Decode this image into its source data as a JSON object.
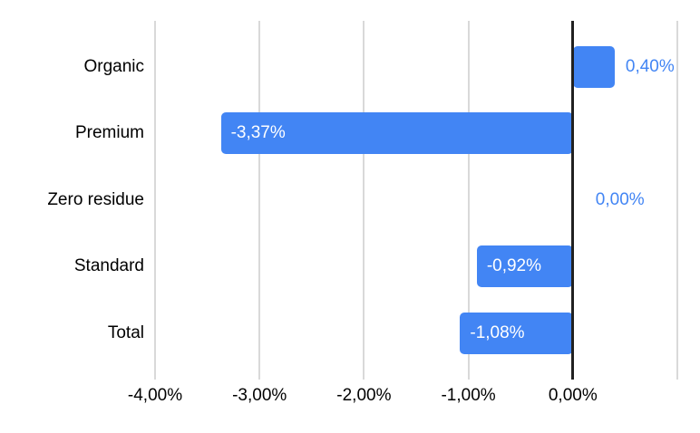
{
  "chart_data": {
    "type": "bar",
    "orientation": "horizontal",
    "title": "",
    "legend": "none",
    "grid": true,
    "categories": [
      "Organic",
      "Premium",
      "Zero residue",
      "Standard",
      "Total"
    ],
    "values": [
      0.4,
      -3.37,
      0.0,
      -0.92,
      -1.08
    ],
    "value_labels": [
      "0,40%",
      "-3,37%",
      "0,00%",
      "-0,92%",
      "-1,08%"
    ],
    "x_axis": {
      "min": -4,
      "max": 1,
      "ticks": [
        {
          "value": -4,
          "label": "-4,00%"
        },
        {
          "value": -3,
          "label": "-3,00%"
        },
        {
          "value": -2,
          "label": "-2,00%"
        },
        {
          "value": -1,
          "label": "-1,00%"
        },
        {
          "value": 0,
          "label": "0,00%"
        },
        {
          "value": 1,
          "label": ""
        }
      ]
    },
    "colors": {
      "bar": "#4285f4",
      "label_inside": "#ffffff",
      "label_outside": "#4285f4",
      "axis_text": "#000000",
      "gridline": "#d9d9d9",
      "zero_line": "#212121",
      "background": "#ffffff"
    }
  }
}
